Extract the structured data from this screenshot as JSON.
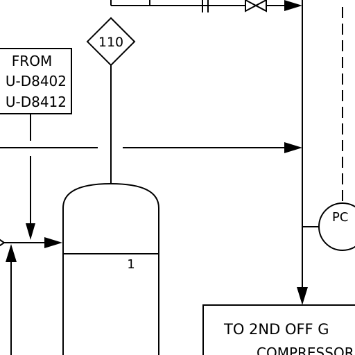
{
  "diagram": {
    "tag": "110",
    "from_box": {
      "line1": "FROM",
      "line2": "U-D8402",
      "line3": "U-D8412"
    },
    "vessel_level_label": "1",
    "controller_label": "PC",
    "destination_box": {
      "line1": "TO 2ND OFF G",
      "line2": "COMPRESSOR"
    }
  }
}
